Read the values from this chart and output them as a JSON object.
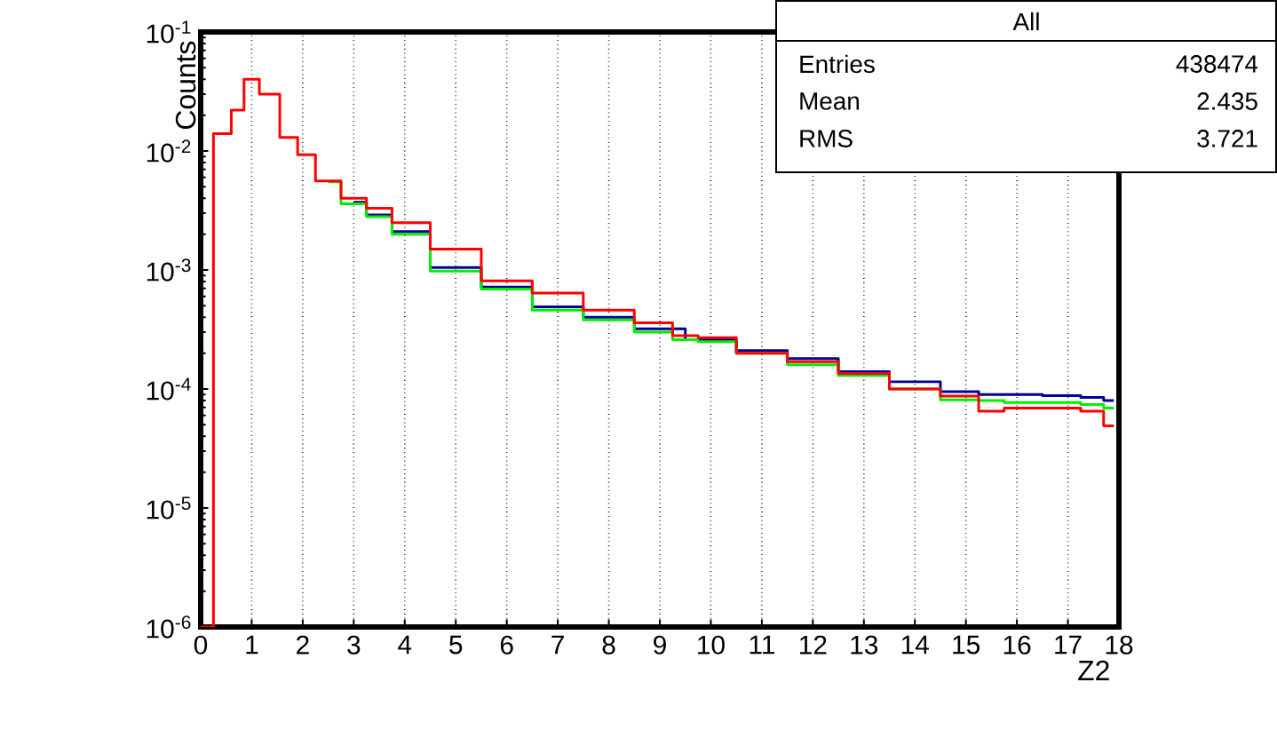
{
  "chart_data": {
    "type": "step",
    "x": [
      0,
      0.5,
      0.7,
      1.0,
      1.3,
      1.8,
      2.0,
      2.5,
      3.0,
      3.5,
      4.0,
      5,
      6,
      7,
      8,
      9,
      9.5,
      10,
      11,
      12,
      13,
      14,
      15,
      15.5,
      16,
      17,
      17.5,
      17.9
    ],
    "series": [
      {
        "color": "#000099",
        "values": [
          null,
          null,
          null,
          null,
          null,
          null,
          null,
          null,
          0.0037,
          0.0029,
          0.0021,
          0.00105,
          0.00072,
          0.00049,
          0.0004,
          0.00032,
          null,
          0.00026,
          0.00021,
          0.00018,
          0.00014,
          0.000115,
          9.5e-05,
          9e-05,
          9e-05,
          8.8e-05,
          8.5e-05,
          8e-05
        ]
      },
      {
        "color": "#00ee00",
        "values": [
          null,
          null,
          null,
          null,
          null,
          null,
          null,
          0.0055,
          0.0036,
          0.0028,
          0.002,
          0.00098,
          0.00069,
          0.00046,
          0.00038,
          0.0003,
          0.00026,
          0.00025,
          0.0002,
          0.00016,
          0.00013,
          0.0001,
          8.1e-05,
          8e-05,
          7.7e-05,
          7.7e-05,
          7.4e-05,
          6.9e-05
        ]
      },
      {
        "color": "#ff0000",
        "values": [
          1e-06,
          0.014,
          0.022,
          0.04,
          0.03,
          0.013,
          0.0093,
          0.0056,
          0.004,
          0.0033,
          0.0025,
          0.0015,
          0.00081,
          0.00064,
          0.00046,
          0.00036,
          0.00028,
          0.00027,
          0.0002,
          0.00017,
          0.000135,
          0.0001,
          8.7e-05,
          6.5e-05,
          6.9e-05,
          6.9e-05,
          6.5e-05,
          4.9e-05
        ]
      }
    ],
    "xlabel": "Z2",
    "ylabel": "Counts",
    "xlim": [
      0,
      18
    ],
    "xticks": [
      0,
      1,
      2,
      3,
      4,
      5,
      6,
      7,
      8,
      9,
      10,
      11,
      12,
      13,
      14,
      15,
      16,
      17,
      18
    ],
    "ylim": [
      1e-06,
      0.1
    ],
    "yticks": [
      {
        "value": 1e-06,
        "label": "10$^{-6}$"
      },
      {
        "value": 1e-05,
        "label": "10$^{-5}$"
      },
      {
        "value": 0.0001,
        "label": "10$^{-4}$"
      },
      {
        "value": 0.001,
        "label": "10$^{-3}$"
      },
      {
        "value": 0.01,
        "label": "10$^{-2}$"
      },
      {
        "value": 0.1,
        "label": "10$^{-1}$"
      }
    ],
    "log": "y",
    "grid": "x",
    "annotations": [
      "All",
      "Entries",
      "438474",
      "Mean",
      "2.435",
      "RMS",
      "3.721"
    ]
  }
}
